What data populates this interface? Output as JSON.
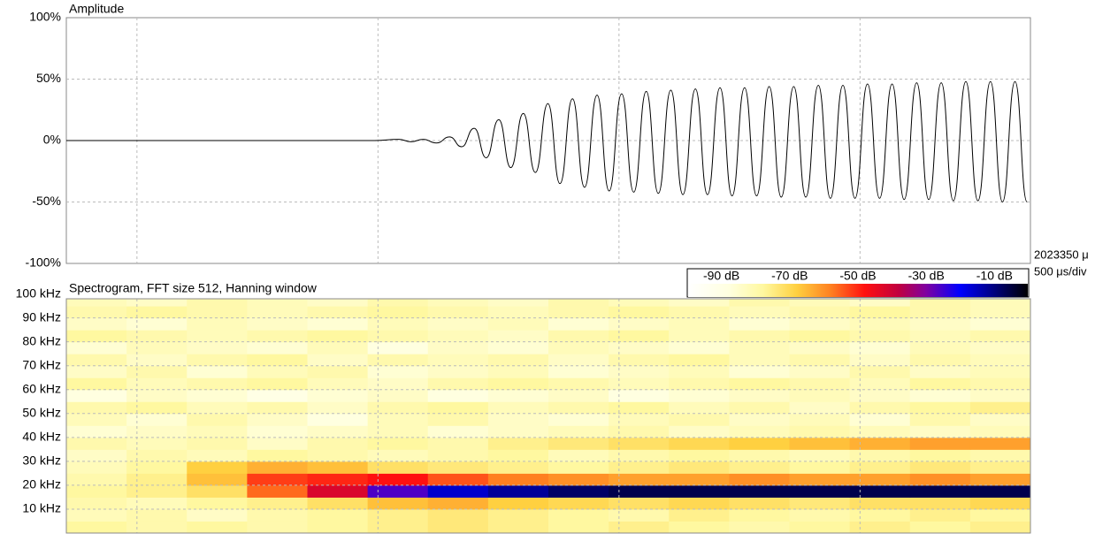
{
  "chart_data": [
    {
      "type": "line",
      "title": "Amplitude",
      "annotations": [
        "2023350 μ",
        "500 μs/div"
      ],
      "xlim": [
        0,
        2000
      ],
      "xticks": [
        146.5,
        646.5,
        1146.5,
        1646.5
      ],
      "ylim": [
        -100,
        100
      ],
      "yticks": [
        {
          "value": 100,
          "label": "100%"
        },
        {
          "value": 50,
          "label": "50%"
        },
        {
          "value": 0,
          "label": "0%"
        },
        {
          "value": -50,
          "label": "-50%"
        },
        {
          "value": -100,
          "label": "-100%"
        }
      ],
      "grid": true,
      "color": "#000000",
      "x": [
        0,
        640,
        690,
        715,
        740,
        768,
        795,
        820,
        846,
        871,
        897,
        922,
        948,
        973,
        999,
        1024,
        1050,
        1075,
        1101,
        1126,
        1152,
        1177,
        1203,
        1228,
        1254,
        1279,
        1305,
        1330,
        1356,
        1381,
        1407,
        1432,
        1458,
        1483,
        1509,
        1534,
        1560,
        1585,
        1611,
        1636,
        1662,
        1687,
        1713,
        1738,
        1764,
        1789,
        1815,
        1840,
        1866,
        1891,
        1917,
        1942,
        1968,
        1993
      ],
      "values": [
        0,
        0,
        1,
        -1,
        1,
        -2,
        3,
        -5,
        10,
        -14,
        17,
        -22,
        22,
        -26,
        30,
        -35,
        34,
        -38,
        37,
        -41,
        38,
        -42,
        40,
        -43,
        41,
        -44,
        42,
        -44,
        43,
        -45,
        43,
        -45,
        44,
        -46,
        44,
        -46,
        45,
        -47,
        45,
        -47,
        46,
        -47,
        46,
        -48,
        47,
        -48,
        47,
        -49,
        48,
        -49,
        48,
        -50,
        48,
        -50
      ]
    },
    {
      "type": "heatmap",
      "title": "Spectrogram, FFT size 512, Hanning window",
      "xlim": [
        0,
        2000
      ],
      "xticks": [
        146.5,
        646.5,
        1146.5,
        1646.5
      ],
      "ylim": [
        0,
        98
      ],
      "yticks": [
        {
          "value": 10,
          "label": "10 kHz"
        },
        {
          "value": 20,
          "label": "20 kHz"
        },
        {
          "value": 30,
          "label": "30 kHz"
        },
        {
          "value": 40,
          "label": "40 kHz"
        },
        {
          "value": 50,
          "label": "50 kHz"
        },
        {
          "value": 60,
          "label": "60 kHz"
        },
        {
          "value": 70,
          "label": "70 kHz"
        },
        {
          "value": 80,
          "label": "80 kHz"
        },
        {
          "value": 90,
          "label": "90 kHz"
        },
        {
          "value": 100,
          "label": "100 kHz"
        }
      ],
      "grid": true,
      "x_bins": [
        0,
        125,
        250,
        375,
        500,
        625,
        750,
        875,
        1000,
        1125,
        1250,
        1375,
        1500,
        1625,
        1750,
        1875,
        2000
      ],
      "y_bins": [
        0,
        5,
        10,
        15,
        20,
        25,
        30,
        35,
        40,
        45,
        50,
        55,
        60,
        65,
        70,
        75,
        80,
        85,
        90,
        95,
        100
      ],
      "z": [
        [
          -78,
          -80,
          -78,
          -80,
          -78,
          -76,
          -74,
          -76,
          -78,
          -76,
          -78,
          -80,
          -78,
          -76,
          -78,
          -76
        ],
        [
          -82,
          -80,
          -84,
          -80,
          -78,
          -76,
          -74,
          -76,
          -78,
          -80,
          -76,
          -78,
          -80,
          -78,
          -76,
          -78
        ],
        [
          -80,
          -82,
          -78,
          -76,
          -72,
          -66,
          -64,
          -68,
          -70,
          -72,
          -70,
          -72,
          -74,
          -72,
          -72,
          -70
        ],
        [
          -78,
          -76,
          -72,
          -56,
          -42,
          -26,
          -16,
          -12,
          -8,
          -6,
          -6,
          -6,
          -6,
          -6,
          -6,
          -6
        ],
        [
          -80,
          -76,
          -66,
          -52,
          -50,
          -48,
          -54,
          -58,
          -60,
          -62,
          -62,
          -60,
          -62,
          -62,
          -60,
          -62
        ],
        [
          -82,
          -78,
          -68,
          -64,
          -66,
          -72,
          -74,
          -76,
          -78,
          -76,
          -74,
          -76,
          -78,
          -76,
          -74,
          -76
        ],
        [
          -84,
          -80,
          -82,
          -78,
          -80,
          -82,
          -80,
          -78,
          -82,
          -80,
          -78,
          -80,
          -82,
          -80,
          -78,
          -80
        ],
        [
          -80,
          -82,
          -80,
          -84,
          -80,
          -78,
          -80,
          -76,
          -74,
          -72,
          -70,
          -68,
          -66,
          -64,
          -62,
          -62
        ],
        [
          -86,
          -84,
          -82,
          -86,
          -84,
          -82,
          -86,
          -84,
          -82,
          -80,
          -84,
          -82,
          -80,
          -82,
          -84,
          -82
        ],
        [
          -82,
          -86,
          -80,
          -84,
          -88,
          -82,
          -80,
          -84,
          -86,
          -82,
          -80,
          -84,
          -82,
          -86,
          -80,
          -84
        ],
        [
          -80,
          -78,
          -82,
          -80,
          -84,
          -80,
          -78,
          -82,
          -80,
          -78,
          -82,
          -80,
          -84,
          -80,
          -78,
          -76
        ],
        [
          -88,
          -84,
          -86,
          -90,
          -86,
          -84,
          -88,
          -86,
          -84,
          -88,
          -86,
          -84,
          -82,
          -84,
          -86,
          -84
        ],
        [
          -78,
          -82,
          -80,
          -78,
          -82,
          -84,
          -80,
          -78,
          -80,
          -82,
          -80,
          -78,
          -80,
          -82,
          -78,
          -80
        ],
        [
          -84,
          -80,
          -86,
          -82,
          -80,
          -86,
          -84,
          -82,
          -86,
          -84,
          -82,
          -86,
          -84,
          -80,
          -84,
          -82
        ],
        [
          -80,
          -84,
          -80,
          -78,
          -84,
          -80,
          -82,
          -80,
          -84,
          -80,
          -78,
          -82,
          -80,
          -84,
          -80,
          -82
        ],
        [
          -86,
          -82,
          -84,
          -86,
          -82,
          -88,
          -84,
          -86,
          -82,
          -84,
          -86,
          -82,
          -84,
          -86,
          -82,
          -84
        ],
        [
          -78,
          -80,
          -82,
          -80,
          -78,
          -80,
          -82,
          -84,
          -80,
          -78,
          -82,
          -80,
          -78,
          -80,
          -82,
          -80
        ],
        [
          -84,
          -86,
          -82,
          -84,
          -86,
          -82,
          -84,
          -82,
          -86,
          -84,
          -82,
          -86,
          -84,
          -82,
          -84,
          -86
        ],
        [
          -80,
          -78,
          -80,
          -82,
          -80,
          -78,
          -80,
          -82,
          -80,
          -78,
          -80,
          -82,
          -80,
          -78,
          -80,
          -82
        ],
        [
          -82,
          -84,
          -80,
          -82,
          -84,
          -80,
          -82,
          -84,
          -80,
          -82,
          -84,
          -80,
          -82,
          -84,
          -80,
          -82
        ]
      ],
      "colorscale": [
        [
          -100,
          "#ffffff"
        ],
        [
          -88,
          "#ffffe0"
        ],
        [
          -78,
          "#fff8a0"
        ],
        [
          -68,
          "#ffd040"
        ],
        [
          -58,
          "#ff8020"
        ],
        [
          -48,
          "#ff1010"
        ],
        [
          -38,
          "#c00040"
        ],
        [
          -30,
          "#8000a0"
        ],
        [
          -20,
          "#0000ff"
        ],
        [
          -10,
          "#000080"
        ],
        [
          0,
          "#000000"
        ]
      ],
      "colorbar": {
        "range": [
          -100,
          0
        ],
        "ticks": [
          {
            "value": -90,
            "label": "-90 dB"
          },
          {
            "value": -70,
            "label": "-70 dB"
          },
          {
            "value": -50,
            "label": "-50 dB"
          },
          {
            "value": -30,
            "label": "-30 dB"
          },
          {
            "value": -10,
            "label": "-10 dB"
          }
        ]
      }
    }
  ]
}
